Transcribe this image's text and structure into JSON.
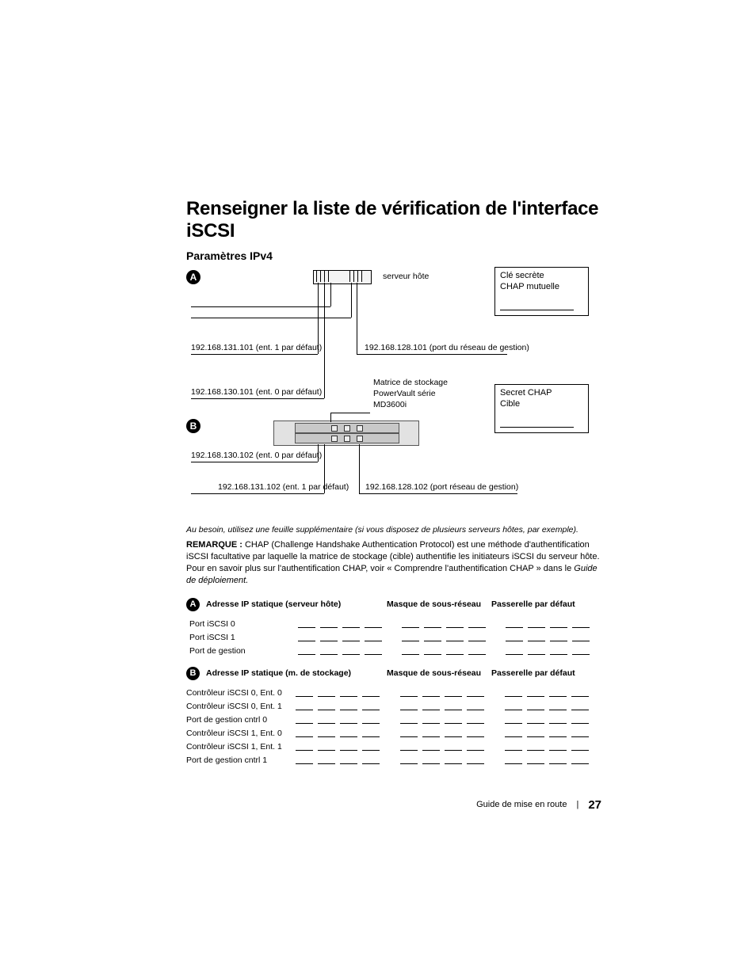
{
  "headings": {
    "title": "Renseigner la liste de vérification de l'interface iSCSI",
    "subtitle": "Paramètres IPv4"
  },
  "diagram": {
    "marker_A": "A",
    "marker_B": "B",
    "host_label": "serveur hôte",
    "chap_mutual_top": "Clé secrète",
    "chap_mutual_bot": "CHAP mutuelle",
    "chap_target_top": "Secret CHAP",
    "chap_target_bot": "Cible",
    "ip_a_in1": "192.168.131.101 (ent. 1 par défaut)",
    "ip_a_in0": "192.168.130.101 (ent. 0 par défaut)",
    "ip_a_mgmt": "192.168.128.101 (port du réseau de gestion)",
    "storage_l1": "Matrice de stockage",
    "storage_l2": "PowerVault série",
    "storage_l3": "MD3600i",
    "ip_b_in0": "192.168.130.102 (ent. 0 par défaut)",
    "ip_b_in1": "192.168.131.102 (ent. 1 par défaut)",
    "ip_b_mgmt": "192.168.128.102 (port réseau de gestion)"
  },
  "notes": {
    "italic": "Au besoin, utilisez une feuille supplémentaire (si vous disposez de plusieurs serveurs hôtes, par exemple).",
    "remark_label": "REMARQUE :",
    "remark_body": " CHAP (Challenge Handshake Authentication Protocol) est une méthode d'authentification iSCSI facultative par laquelle la matrice de stockage (cible) authentifie les initiateurs iSCSI du serveur hôte. Pour en savoir plus sur l'authentification CHAP, voir « Comprendre l'authentification CHAP » dans le ",
    "remark_doc": "Guide de déploiement."
  },
  "table_common": {
    "col_subnet": "Masque de sous-réseau",
    "col_gateway": "Passerelle par défaut"
  },
  "table_a": {
    "heading": "Adresse IP statique (serveur hôte)",
    "rows": [
      "Port iSCSI 0",
      "Port iSCSI 1",
      "Port de gestion"
    ]
  },
  "table_b": {
    "heading": "Adresse IP statique (m. de stockage)",
    "rows": [
      "Contrôleur iSCSI 0, Ent. 0",
      "Contrôleur iSCSI 0, Ent. 1",
      "Port de gestion cntrl 0",
      "Contrôleur iSCSI 1, Ent. 0",
      "Contrôleur iSCSI 1, Ent. 1",
      "Port de gestion cntrl 1"
    ]
  },
  "footer": {
    "doc_name": "Guide de mise en route",
    "page": "27"
  }
}
